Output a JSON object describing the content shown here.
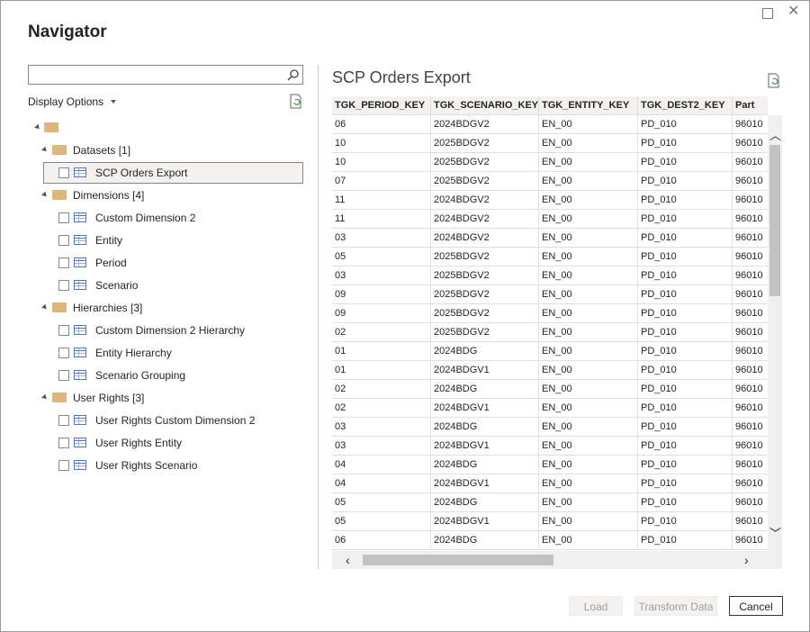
{
  "dialog": {
    "title": "Navigator"
  },
  "left_pane": {
    "display_options": "Display Options",
    "groups": [
      {
        "label": "Datasets [1]",
        "items": [
          "SCP Orders Export"
        ]
      },
      {
        "label": "Dimensions [4]",
        "items": [
          "Custom Dimension 2",
          "Entity",
          "Period",
          "Scenario"
        ]
      },
      {
        "label": "Hierarchies [3]",
        "items": [
          "Custom Dimension 2 Hierarchy",
          "Entity Hierarchy",
          "Scenario Grouping"
        ]
      },
      {
        "label": "User Rights [3]",
        "items": [
          "User Rights Custom Dimension 2",
          "User Rights Entity",
          "User Rights Scenario"
        ]
      }
    ]
  },
  "preview": {
    "title": "SCP Orders Export",
    "table": {
      "columns": [
        "TGK_PERIOD_KEY",
        "TGK_SCENARIO_KEY",
        "TGK_ENTITY_KEY",
        "TGK_DEST2_KEY",
        "Part"
      ],
      "rows": [
        [
          "06",
          "2024BDGV2",
          "EN_00",
          "PD_010",
          "96010"
        ],
        [
          "10",
          "2025BDGV2",
          "EN_00",
          "PD_010",
          "96010"
        ],
        [
          "10",
          "2025BDGV2",
          "EN_00",
          "PD_010",
          "96010"
        ],
        [
          "07",
          "2025BDGV2",
          "EN_00",
          "PD_010",
          "96010"
        ],
        [
          "11",
          "2024BDGV2",
          "EN_00",
          "PD_010",
          "96010"
        ],
        [
          "11",
          "2024BDGV2",
          "EN_00",
          "PD_010",
          "96010"
        ],
        [
          "03",
          "2024BDGV2",
          "EN_00",
          "PD_010",
          "96010"
        ],
        [
          "05",
          "2025BDGV2",
          "EN_00",
          "PD_010",
          "96010"
        ],
        [
          "03",
          "2025BDGV2",
          "EN_00",
          "PD_010",
          "96010"
        ],
        [
          "09",
          "2025BDGV2",
          "EN_00",
          "PD_010",
          "96010"
        ],
        [
          "09",
          "2025BDGV2",
          "EN_00",
          "PD_010",
          "96010"
        ],
        [
          "02",
          "2025BDGV2",
          "EN_00",
          "PD_010",
          "96010"
        ],
        [
          "01",
          "2024BDG",
          "EN_00",
          "PD_010",
          "96010"
        ],
        [
          "01",
          "2024BDGV1",
          "EN_00",
          "PD_010",
          "96010"
        ],
        [
          "02",
          "2024BDG",
          "EN_00",
          "PD_010",
          "96010"
        ],
        [
          "02",
          "2024BDGV1",
          "EN_00",
          "PD_010",
          "96010"
        ],
        [
          "03",
          "2024BDG",
          "EN_00",
          "PD_010",
          "96010"
        ],
        [
          "03",
          "2024BDGV1",
          "EN_00",
          "PD_010",
          "96010"
        ],
        [
          "04",
          "2024BDG",
          "EN_00",
          "PD_010",
          "96010"
        ],
        [
          "04",
          "2024BDGV1",
          "EN_00",
          "PD_010",
          "96010"
        ],
        [
          "05",
          "2024BDG",
          "EN_00",
          "PD_010",
          "96010"
        ],
        [
          "05",
          "2024BDGV1",
          "EN_00",
          "PD_010",
          "96010"
        ],
        [
          "06",
          "2024BDG",
          "EN_00",
          "PD_010",
          "96010"
        ]
      ]
    }
  },
  "buttons": {
    "load": "Load",
    "transform": "Transform Data",
    "cancel": "Cancel"
  }
}
